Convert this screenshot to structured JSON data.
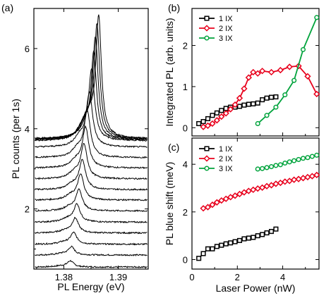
{
  "chart_data": [
    {
      "panel": "(a)",
      "type": "line",
      "xlabel": "PL Energy (eV)",
      "ylabel": "PL counts (per 1s)",
      "xlim": [
        1.3745,
        1.3955
      ],
      "ylim": [
        0.5,
        7.0
      ],
      "xticks": [
        1.38,
        1.39
      ],
      "xtick_labels": [
        "1.38",
        "1.39"
      ],
      "yticks": [
        2,
        4,
        6
      ],
      "ytick_labels": [
        "2",
        "4",
        "6"
      ],
      "series": [
        {
          "offset": 0.55,
          "center": 1.3812,
          "amp": 0.15,
          "width": 0.0007
        },
        {
          "offset": 0.85,
          "center": 1.3814,
          "amp": 0.2,
          "width": 0.0007
        },
        {
          "offset": 1.12,
          "center": 1.3818,
          "amp": 0.28,
          "width": 0.0007
        },
        {
          "offset": 1.4,
          "center": 1.3821,
          "amp": 0.36,
          "width": 0.0007
        },
        {
          "offset": 1.67,
          "center": 1.3824,
          "amp": 0.44,
          "width": 0.0007
        },
        {
          "offset": 1.95,
          "center": 1.3828,
          "amp": 0.52,
          "width": 0.0007
        },
        {
          "offset": 2.22,
          "center": 1.3831,
          "amp": 0.62,
          "width": 0.0007
        },
        {
          "offset": 2.48,
          "center": 1.3834,
          "amp": 0.72,
          "width": 0.0007
        },
        {
          "offset": 2.75,
          "center": 1.3837,
          "amp": 0.84,
          "width": 0.0007
        },
        {
          "offset": 3.02,
          "center": 1.384,
          "amp": 0.98,
          "width": 0.0007
        },
        {
          "offset": 3.28,
          "center": 1.3843,
          "amp": 1.12,
          "width": 0.0007
        },
        {
          "offset": 3.54,
          "center": 1.3847,
          "amp": 1.3,
          "width": 0.0007
        },
        {
          "offset": 3.7,
          "center": 1.3851,
          "amp": 1.7,
          "width": 0.00065
        },
        {
          "offset": 3.72,
          "center": 1.3855,
          "amp": 2.1,
          "width": 0.0006
        },
        {
          "offset": 3.73,
          "center": 1.3858,
          "amp": 2.45,
          "width": 0.0006
        },
        {
          "offset": 3.74,
          "center": 1.3861,
          "amp": 2.75,
          "width": 0.0006
        },
        {
          "offset": 3.75,
          "center": 1.3864,
          "amp": 2.95,
          "width": 0.0006
        }
      ]
    },
    {
      "panel": "(b)",
      "type": "line",
      "xlabel": "",
      "ylabel": "Integrated PL (arb. units)",
      "xlim": [
        0,
        5.6
      ],
      "ylim": [
        -0.2,
        2.9
      ],
      "yticks": [
        0,
        1,
        2
      ],
      "ytick_labels": [
        "0",
        "1",
        "2"
      ],
      "legend": "top-left",
      "series": [
        {
          "name": "1 IX",
          "color": "#000000",
          "marker": "square",
          "x": [
            0.3,
            0.5,
            0.7,
            0.9,
            1.1,
            1.3,
            1.5,
            1.7,
            1.9,
            2.1,
            2.3,
            2.5,
            2.7,
            2.9,
            3.1,
            3.3,
            3.5,
            3.7
          ],
          "y": [
            0.1,
            0.15,
            0.22,
            0.3,
            0.36,
            0.42,
            0.47,
            0.5,
            0.5,
            0.52,
            0.55,
            0.57,
            0.58,
            0.6,
            0.68,
            0.72,
            0.74,
            0.75
          ]
        },
        {
          "name": "2 IX",
          "color": "#e8001c",
          "marker": "diamond",
          "x": [
            0.5,
            0.7,
            0.9,
            1.1,
            1.3,
            1.5,
            1.7,
            1.9,
            2.1,
            2.3,
            2.5,
            2.7,
            2.9,
            3.1,
            3.5,
            3.9,
            4.3,
            4.7,
            5.1,
            5.5
          ],
          "y": [
            0.02,
            0.05,
            0.1,
            0.18,
            0.27,
            0.35,
            0.45,
            0.56,
            0.72,
            0.95,
            1.22,
            1.35,
            1.32,
            1.38,
            1.35,
            1.4,
            1.48,
            1.5,
            1.25,
            0.82
          ]
        },
        {
          "name": "3 IX",
          "color": "#00a33c",
          "marker": "circle",
          "x": [
            2.9,
            3.3,
            3.7,
            4.1,
            4.5,
            4.9,
            5.5
          ],
          "y": [
            0.1,
            0.3,
            0.5,
            0.8,
            1.15,
            1.9,
            2.68
          ]
        }
      ]
    },
    {
      "panel": "(c)",
      "type": "line",
      "xlabel": "Laser Power  (nW)",
      "ylabel": "PL blue shift (meV)",
      "xlim": [
        0,
        5.6
      ],
      "ylim": [
        -0.4,
        5.1
      ],
      "xticks": [
        0,
        2,
        4
      ],
      "xtick_labels": [
        "0",
        "2",
        "4"
      ],
      "yticks": [
        0,
        2,
        4
      ],
      "ytick_labels": [
        "0",
        "2",
        "4"
      ],
      "legend": "top-left",
      "series": [
        {
          "name": "1 IX",
          "color": "#000000",
          "marker": "square",
          "x": [
            0.3,
            0.5,
            0.7,
            0.9,
            1.1,
            1.3,
            1.5,
            1.7,
            1.9,
            2.1,
            2.3,
            2.5,
            2.7,
            2.9,
            3.1,
            3.3,
            3.5,
            3.7
          ],
          "y": [
            0.05,
            0.25,
            0.45,
            0.45,
            0.55,
            0.6,
            0.66,
            0.7,
            0.75,
            0.8,
            0.87,
            0.9,
            0.93,
            1.0,
            1.05,
            1.12,
            1.18,
            1.28
          ]
        },
        {
          "name": "2 IX",
          "color": "#e8001c",
          "marker": "diamond",
          "x": [
            0.5,
            0.7,
            0.9,
            1.1,
            1.3,
            1.5,
            1.7,
            1.9,
            2.1,
            2.3,
            2.5,
            2.7,
            2.9,
            3.1,
            3.3,
            3.5,
            3.7,
            3.9,
            4.1,
            4.3,
            4.5,
            4.7,
            4.9,
            5.1,
            5.3,
            5.5
          ],
          "y": [
            2.15,
            2.2,
            2.3,
            2.4,
            2.48,
            2.55,
            2.62,
            2.68,
            2.75,
            2.82,
            2.88,
            2.93,
            2.98,
            3.02,
            3.08,
            3.12,
            3.18,
            3.22,
            3.27,
            3.3,
            3.35,
            3.38,
            3.42,
            3.46,
            3.5,
            3.55
          ]
        },
        {
          "name": "3 IX",
          "color": "#00a33c",
          "marker": "circle",
          "x": [
            2.9,
            3.1,
            3.3,
            3.5,
            3.7,
            3.9,
            4.1,
            4.3,
            4.5,
            4.7,
            4.9,
            5.1,
            5.3,
            5.5
          ],
          "y": [
            3.8,
            3.82,
            3.86,
            3.9,
            3.95,
            3.98,
            4.05,
            4.1,
            4.15,
            4.2,
            4.25,
            4.28,
            4.33,
            4.38
          ]
        }
      ]
    }
  ]
}
